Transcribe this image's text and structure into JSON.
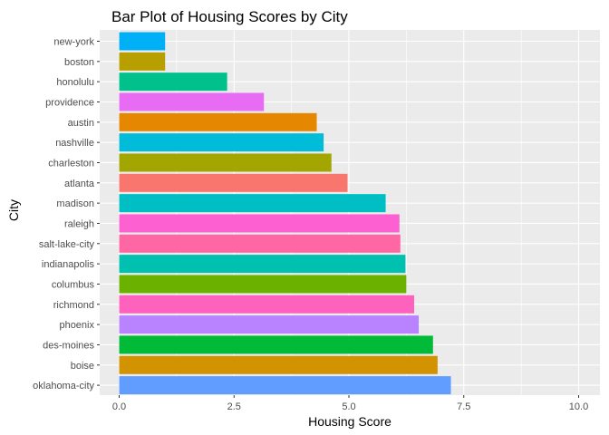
{
  "chart_data": {
    "type": "bar",
    "orientation": "horizontal",
    "title": "Bar Plot of Housing Scores by City",
    "xlabel": "Housing Score",
    "ylabel": "City",
    "xlim": [
      0,
      10
    ],
    "x_ticks": [
      "0.0",
      "2.5",
      "5.0",
      "7.5",
      "10.0"
    ],
    "grid": true,
    "legend": "none",
    "panel_background": "#ebebeb",
    "grid_color": "#ffffff",
    "categories": [
      "new-york",
      "boston",
      "honolulu",
      "providence",
      "austin",
      "nashville",
      "charleston",
      "atlanta",
      "madison",
      "raleigh",
      "salt-lake-city",
      "indianapolis",
      "columbus",
      "richmond",
      "phoenix",
      "des-moines",
      "boise",
      "oklahoma-city"
    ],
    "values": [
      1.0,
      1.0,
      2.35,
      3.15,
      4.3,
      4.45,
      4.62,
      4.97,
      5.8,
      6.1,
      6.12,
      6.23,
      6.25,
      6.42,
      6.52,
      6.83,
      6.93,
      7.22
    ],
    "colors": [
      "#00b0f6",
      "#b79f00",
      "#00c08b",
      "#e76bf3",
      "#e58700",
      "#00bcd8",
      "#a3a500",
      "#f8766d",
      "#00bfc4",
      "#fd61d1",
      "#ff67a4",
      "#00c0af",
      "#6bb100",
      "#ff62bc",
      "#b983ff",
      "#00ba38",
      "#d39200",
      "#619cff"
    ]
  }
}
